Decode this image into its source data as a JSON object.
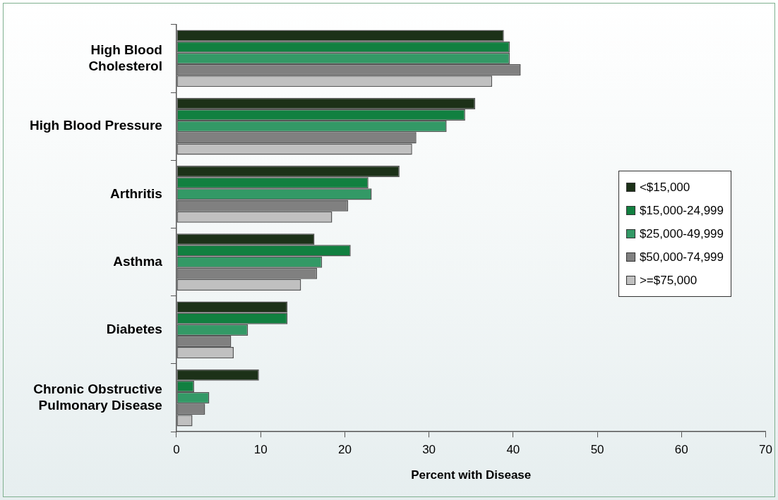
{
  "chart_data": {
    "type": "bar",
    "orientation": "horizontal",
    "xlabel": "Percent with Disease",
    "categories": [
      "High Blood Cholesterol",
      "High Blood Pressure",
      "Arthritis",
      "Asthma",
      "Diabetes",
      "Chronic Obstructive Pulmonary Disease"
    ],
    "series": [
      {
        "name": "<$15,000",
        "color": "#1c3118",
        "values": [
          38.9,
          35.5,
          26.5,
          16.4,
          13.2,
          9.8
        ]
      },
      {
        "name": "$15,000-24,999",
        "color": "#118040",
        "values": [
          39.6,
          34.3,
          22.8,
          20.7,
          13.2,
          2.1
        ]
      },
      {
        "name": "$25,000-49,999",
        "color": "#339966",
        "values": [
          39.6,
          32.1,
          23.2,
          17.3,
          8.5,
          3.9
        ]
      },
      {
        "name": "$50,000-74,999",
        "color": "#808080",
        "values": [
          40.9,
          28.5,
          20.4,
          16.7,
          6.5,
          3.4
        ]
      },
      {
        "name": ">=$75,000",
        "color": "#c0c0c0",
        "values": [
          37.5,
          28.0,
          18.5,
          14.8,
          6.8,
          1.9
        ]
      }
    ],
    "xlim": [
      0,
      70
    ],
    "xticks": [
      0,
      10,
      20,
      30,
      40,
      50,
      60,
      70
    ],
    "grid": false,
    "legend": "right"
  }
}
